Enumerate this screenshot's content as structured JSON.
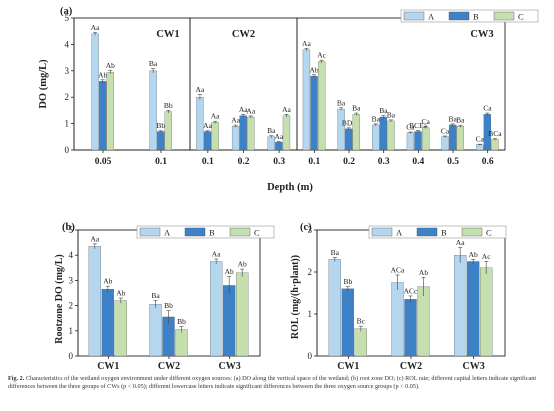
{
  "colors": {
    "A": "#b5d6ef",
    "B": "#3d82c6",
    "C": "#c5e0ae",
    "axis": "#222222",
    "bar_edge": "#555555"
  },
  "chart_data": [
    {
      "panel": "(a)",
      "type": "bar",
      "ylabel": "DO (mg/L)",
      "xlabel": "Depth (m)",
      "ylim": [
        0,
        5
      ],
      "yticks": [
        0,
        1,
        2,
        3,
        4,
        5
      ],
      "legend": {
        "placement": "top-right",
        "entries": [
          "A",
          "B",
          "C"
        ]
      },
      "groups": [
        {
          "name": "CW1",
          "categories": [
            "0.05",
            "0.1"
          ],
          "series": [
            {
              "name": "A",
              "values": [
                4.4,
                3.0
              ],
              "errors": [
                0.06,
                0.08
              ],
              "labels": [
                "Aa",
                "Ba"
              ]
            },
            {
              "name": "B",
              "values": [
                2.6,
                0.7
              ],
              "errors": [
                0.06,
                0.03
              ],
              "labels": [
                "Ab",
                "Bb"
              ]
            },
            {
              "name": "C",
              "values": [
                2.95,
                1.45
              ],
              "errors": [
                0.06,
                0.05
              ],
              "labels": [
                "Ab",
                "Bb"
              ]
            }
          ]
        },
        {
          "name": "CW2",
          "categories": [
            "0.1",
            "0.2",
            "0.3"
          ],
          "series": [
            {
              "name": "A",
              "values": [
                2.0,
                0.9,
                0.5
              ],
              "errors": [
                0.1,
                0.04,
                0.04
              ],
              "labels": [
                "Aa",
                "Aa",
                "Ba"
              ]
            },
            {
              "name": "B",
              "values": [
                0.7,
                1.3,
                0.3
              ],
              "errors": [
                0.03,
                0.05,
                0.02
              ],
              "labels": [
                "Aa",
                "Aa",
                "Aa"
              ]
            },
            {
              "name": "C",
              "values": [
                1.05,
                1.25,
                1.3
              ],
              "errors": [
                0.04,
                0.04,
                0.05
              ],
              "labels": [
                "Aa",
                "Aa",
                "Aa"
              ]
            }
          ]
        },
        {
          "name": "CW3",
          "categories": [
            "0.1",
            "0.2",
            "0.3",
            "0.4",
            "0.5",
            "0.6"
          ],
          "series": [
            {
              "name": "A",
              "values": [
                3.8,
                1.55,
                0.95,
                0.65,
                0.5,
                0.2
              ],
              "errors": [
                0.05,
                0.05,
                0.04,
                0.03,
                0.03,
                0.02
              ],
              "labels": [
                "Aa",
                "Ba",
                "Ba",
                "Ca",
                "Ca",
                "Ca"
              ]
            },
            {
              "name": "B",
              "values": [
                2.8,
                0.8,
                1.25,
                0.7,
                0.95,
                1.35
              ],
              "errors": [
                0.05,
                0.04,
                0.05,
                0.04,
                0.04,
                0.05
              ],
              "labels": [
                "Ab",
                "BDa",
                "Ba",
                "BCEa",
                "Ba",
                "Ca"
              ]
            },
            {
              "name": "C",
              "values": [
                3.35,
                1.35,
                1.1,
                0.85,
                0.9,
                0.4
              ],
              "errors": [
                0.05,
                0.05,
                0.04,
                0.04,
                0.04,
                0.03
              ],
              "labels": [
                "Ac",
                "Ba",
                "Ba",
                "Ca",
                "Ba",
                "BCa"
              ]
            }
          ]
        }
      ]
    },
    {
      "panel": "(b)",
      "type": "bar",
      "ylabel": "Rootzone DO (mg/L)",
      "xlabel": "",
      "ylim": [
        0,
        5
      ],
      "yticks": [
        0,
        1,
        2,
        3,
        4,
        5
      ],
      "legend": {
        "placement": "top-right",
        "entries": [
          "A",
          "B",
          "C"
        ]
      },
      "categories": [
        "CW1",
        "CW2",
        "CW3"
      ],
      "series": [
        {
          "name": "A",
          "values": [
            4.35,
            2.05,
            3.75
          ],
          "errors": [
            0.1,
            0.15,
            0.1
          ],
          "labels": [
            "Aa",
            "Ba",
            "Aa"
          ]
        },
        {
          "name": "B",
          "values": [
            2.65,
            1.55,
            2.8
          ],
          "errors": [
            0.12,
            0.25,
            0.35
          ],
          "labels": [
            "Ab",
            "Bb",
            "Ab"
          ]
        },
        {
          "name": "C",
          "values": [
            2.2,
            1.05,
            3.3
          ],
          "errors": [
            0.1,
            0.12,
            0.15
          ],
          "labels": [
            "Ab",
            "Bb",
            "Ab"
          ]
        }
      ]
    },
    {
      "panel": "(c)",
      "type": "bar",
      "ylabel": "ROL (mg/(h·plant))",
      "xlabel": "",
      "ylim": [
        0,
        3
      ],
      "yticks": [
        0,
        1,
        2,
        3
      ],
      "legend": {
        "placement": "top-right",
        "entries": [
          "A",
          "B",
          "C"
        ]
      },
      "categories": [
        "CW1",
        "CW2",
        "CW3"
      ],
      "series": [
        {
          "name": "A",
          "values": [
            2.3,
            1.75,
            2.4
          ],
          "errors": [
            0.05,
            0.18,
            0.18
          ],
          "labels": [
            "Ba",
            "ACa",
            "Aa"
          ]
        },
        {
          "name": "B",
          "values": [
            1.6,
            1.35,
            2.25
          ],
          "errors": [
            0.05,
            0.08,
            0.05
          ],
          "labels": [
            "Bb",
            "ACc",
            "Ab"
          ]
        },
        {
          "name": "C",
          "values": [
            0.65,
            1.65,
            2.1
          ],
          "errors": [
            0.06,
            0.22,
            0.15
          ],
          "labels": [
            "Bc",
            "Ab",
            "Ac"
          ]
        }
      ]
    }
  ],
  "caption": {
    "lead": "Fig. 2.",
    "text": "Characteristics of the wetland oxygen environment under different oxygen sources: (a) DO along the vertical space of the wetland; (b) root zone DO; (c) ROL rate; different capital letters indicate significant differences between the three groups of CWs (p < 0.05); different lowercase letters indicate significant differences between the three oxygen source groups (p < 0.05)."
  }
}
